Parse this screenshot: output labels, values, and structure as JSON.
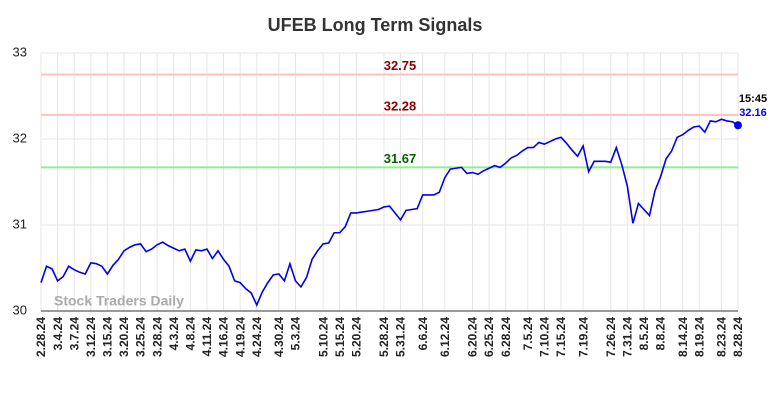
{
  "chart_data": {
    "type": "line",
    "title": "UFEB Long Term Signals",
    "categories": [
      "2.28.24",
      null,
      null,
      "3.4.24",
      null,
      null,
      "3.7.24",
      null,
      null,
      "3.12.24",
      null,
      null,
      "3.15.24",
      null,
      null,
      "3.20.24",
      null,
      null,
      "3.25.24",
      null,
      null,
      "3.28.24",
      null,
      null,
      "4.3.24",
      null,
      null,
      "4.8.24",
      null,
      null,
      "4.11.24",
      null,
      null,
      "4.16.24",
      null,
      null,
      "4.19.24",
      null,
      null,
      "4.24.24",
      null,
      null,
      null,
      "4.30.24",
      null,
      null,
      "5.3.24",
      null,
      null,
      null,
      null,
      "5.10.24",
      null,
      null,
      "5.15.24",
      null,
      null,
      "5.20.24",
      null,
      null,
      null,
      null,
      "5.28.24",
      null,
      null,
      "5.31.24",
      null,
      null,
      null,
      "6.6.24",
      null,
      null,
      null,
      "6.12.24",
      null,
      null,
      null,
      null,
      "6.20.24",
      null,
      null,
      "6.25.24",
      null,
      null,
      "6.28.24",
      null,
      null,
      null,
      "7.5.24",
      null,
      null,
      "7.10.24",
      null,
      null,
      "7.15.24",
      null,
      null,
      null,
      "7.19.24",
      null,
      null,
      null,
      null,
      "7.26.24",
      null,
      null,
      "7.31.24",
      null,
      null,
      "8.5.24",
      null,
      null,
      "8.8.24",
      null,
      null,
      null,
      "8.14.24",
      null,
      null,
      "8.19.24",
      null,
      null,
      null,
      "8.23.24",
      null,
      null,
      "8.28.24"
    ],
    "values": [
      30.33,
      30.52,
      30.49,
      30.35,
      30.4,
      30.52,
      30.48,
      30.45,
      30.43,
      30.56,
      30.55,
      30.52,
      30.43,
      30.53,
      30.6,
      30.7,
      30.74,
      30.77,
      30.78,
      30.69,
      30.72,
      30.77,
      30.8,
      30.76,
      30.73,
      30.7,
      30.72,
      30.58,
      30.71,
      30.7,
      30.72,
      30.61,
      30.7,
      30.6,
      30.52,
      30.35,
      30.33,
      30.26,
      30.21,
      30.07,
      30.22,
      30.33,
      30.42,
      30.43,
      30.35,
      30.55,
      30.35,
      30.28,
      30.39,
      30.6,
      30.7,
      30.78,
      30.79,
      30.91,
      30.91,
      30.98,
      31.14,
      31.14,
      31.15,
      31.16,
      31.17,
      31.18,
      31.21,
      31.22,
      31.14,
      31.06,
      31.17,
      31.18,
      31.19,
      31.35,
      31.35,
      31.35,
      31.38,
      31.55,
      31.65,
      31.66,
      31.67,
      31.6,
      31.61,
      31.59,
      31.63,
      31.66,
      31.69,
      31.67,
      31.72,
      31.78,
      31.81,
      31.86,
      31.9,
      31.9,
      31.96,
      31.94,
      31.97,
      32.0,
      32.02,
      31.95,
      31.87,
      31.8,
      31.92,
      31.62,
      31.74,
      31.74,
      31.74,
      31.73,
      31.9,
      31.7,
      31.45,
      31.02,
      31.25,
      31.18,
      31.11,
      31.4,
      31.56,
      31.77,
      31.86,
      32.02,
      32.05,
      32.1,
      32.14,
      32.15,
      32.08,
      32.21,
      32.2,
      32.23,
      32.21,
      32.2,
      32.16
    ],
    "color": "#0000ee",
    "ylim": [
      30,
      33
    ],
    "yticks": [
      30,
      31,
      32,
      33
    ],
    "grid": true,
    "hlines": [
      {
        "value": 32.75,
        "color": "#ffc0c0",
        "label_color": "#8b0000"
      },
      {
        "value": 32.28,
        "color": "#ffc0c0",
        "label_color": "#8b0000"
      },
      {
        "value": 31.67,
        "color": "#90ee90",
        "label_color": "#006400"
      }
    ],
    "last_time": "15:45",
    "watermark": "Stock Traders Daily"
  }
}
